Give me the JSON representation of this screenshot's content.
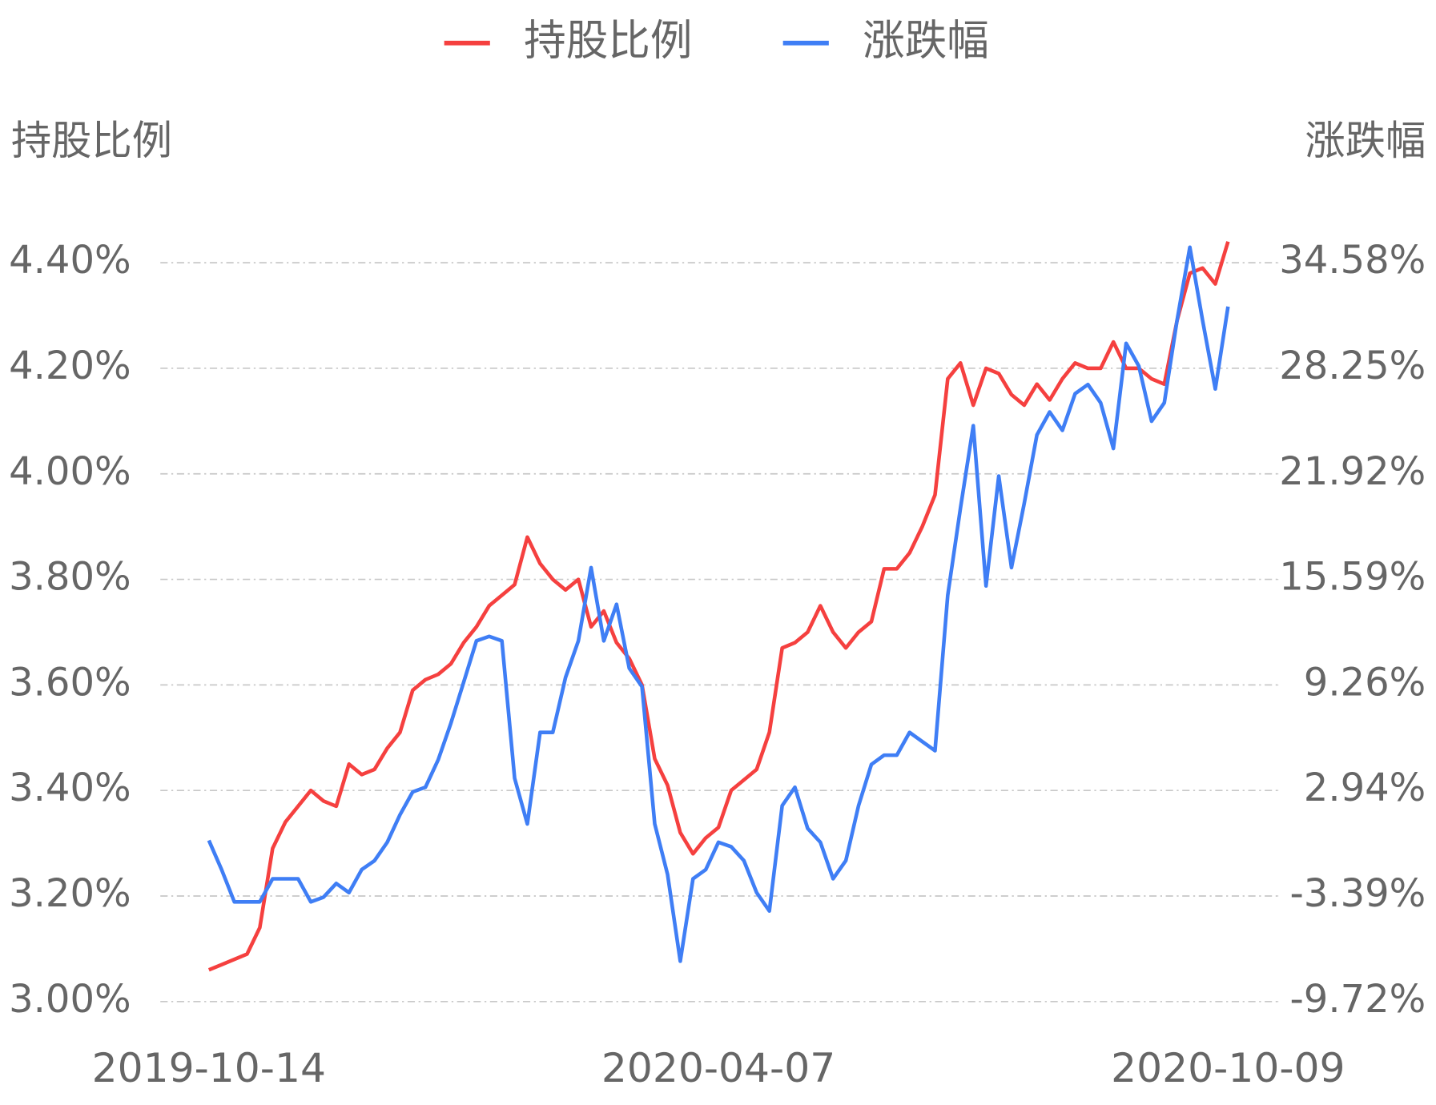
{
  "chart_data": {
    "type": "line",
    "y_label": "持股比例",
    "y2_label": "涨跌幅",
    "categories": [
      "2019-10-14",
      null,
      null,
      null,
      null,
      null,
      null,
      null,
      null,
      null,
      null,
      null,
      null,
      null,
      null,
      null,
      null,
      null,
      null,
      null,
      null,
      null,
      null,
      null,
      null,
      null,
      null,
      null,
      null,
      null,
      null,
      null,
      null,
      null,
      null,
      null,
      null,
      null,
      null,
      null,
      "2020-04-07",
      null,
      null,
      null,
      null,
      null,
      null,
      null,
      null,
      null,
      null,
      null,
      null,
      null,
      null,
      null,
      null,
      null,
      null,
      null,
      null,
      null,
      null,
      null,
      null,
      null,
      null,
      null,
      null,
      null,
      null,
      null,
      null,
      null,
      null,
      null,
      null,
      null,
      null,
      null,
      "2020-10-09"
    ],
    "series": [
      {
        "name": "持股比例",
        "color": "#f5403f",
        "values": [
          3.06,
          3.07,
          3.08,
          3.09,
          3.14,
          3.29,
          3.34,
          3.37,
          3.4,
          3.38,
          3.37,
          3.45,
          3.43,
          3.44,
          3.48,
          3.51,
          3.59,
          3.61,
          3.62,
          3.64,
          3.68,
          3.71,
          3.75,
          3.77,
          3.79,
          3.88,
          3.83,
          3.8,
          3.78,
          3.8,
          3.71,
          3.74,
          3.68,
          3.65,
          3.6,
          3.46,
          3.41,
          3.32,
          3.28,
          3.31,
          3.33,
          3.4,
          3.42,
          3.44,
          3.51,
          3.67,
          3.68,
          3.7,
          3.75,
          3.7,
          3.67,
          3.7,
          3.72,
          3.82,
          3.82,
          3.85,
          3.9,
          3.96,
          4.18,
          4.21,
          4.13,
          4.2,
          4.19,
          4.15,
          4.13,
          4.17,
          4.14,
          4.18,
          4.21,
          4.2,
          4.2,
          4.25,
          4.2,
          4.2,
          4.18,
          4.17,
          4.29,
          4.38,
          4.39,
          4.36,
          4.44
        ]
      },
      {
        "name": "涨跌幅",
        "color": "#3f7ef5",
        "axis": "y2",
        "values": [
          -0.06,
          -1.81,
          -3.74,
          -3.74,
          -3.74,
          -2.36,
          -2.36,
          -2.36,
          -3.74,
          -3.46,
          -2.64,
          -3.19,
          -1.81,
          -1.27,
          -0.17,
          1.48,
          2.85,
          3.13,
          4.77,
          6.97,
          9.44,
          11.91,
          12.18,
          11.91,
          3.67,
          0.93,
          6.42,
          6.42,
          9.71,
          11.91,
          16.3,
          11.91,
          14.1,
          10.26,
          9.16,
          0.93,
          -2.09,
          -7.3,
          -2.36,
          -1.81,
          -0.17,
          -0.44,
          -1.27,
          -3.19,
          -4.29,
          2.03,
          3.13,
          0.66,
          -0.17,
          -2.36,
          -1.27,
          2.03,
          4.5,
          5.05,
          5.05,
          6.42,
          5.87,
          5.32,
          14.65,
          19.87,
          24.81,
          15.2,
          21.79,
          16.3,
          20.14,
          24.26,
          25.63,
          24.53,
          26.73,
          27.28,
          26.18,
          23.44,
          29.75,
          28.38,
          25.08,
          26.18,
          31.12,
          35.51,
          31.12,
          27.01,
          31.95
        ]
      }
    ],
    "ylim": [
      3.0,
      4.4
    ],
    "yticks": [
      {
        "value": 3.0,
        "label": "3.00%"
      },
      {
        "value": 3.2,
        "label": "3.20%"
      },
      {
        "value": 3.4,
        "label": "3.40%"
      },
      {
        "value": 3.6,
        "label": "3.60%"
      },
      {
        "value": 3.8,
        "label": "3.80%"
      },
      {
        "value": 4.0,
        "label": "4.00%"
      },
      {
        "value": 4.2,
        "label": "4.20%"
      },
      {
        "value": 4.4,
        "label": "4.40%"
      }
    ],
    "y2lim": [
      -9.72,
      34.58
    ],
    "y2ticks": [
      {
        "value": -9.72,
        "label": "-9.72%"
      },
      {
        "value": -3.39,
        "label": "-3.39%"
      },
      {
        "value": 2.94,
        "label": "2.94%"
      },
      {
        "value": 9.26,
        "label": "9.26%"
      },
      {
        "value": 15.59,
        "label": "15.59%"
      },
      {
        "value": 21.92,
        "label": "21.92%"
      },
      {
        "value": 28.25,
        "label": "28.25%"
      },
      {
        "value": 34.58,
        "label": "34.58%"
      }
    ],
    "grid": true
  }
}
